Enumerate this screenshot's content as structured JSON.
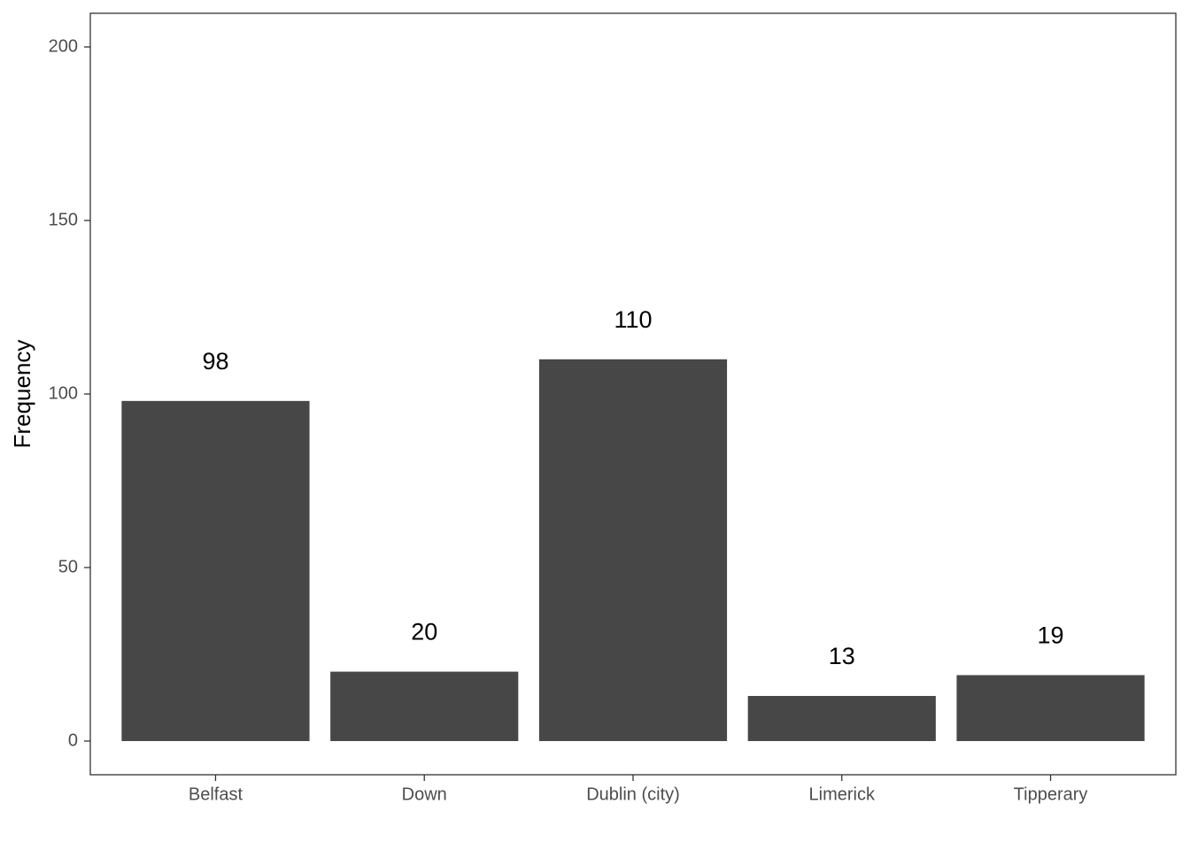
{
  "chart_data": {
    "type": "bar",
    "y_label": "Frequency",
    "categories": [
      "Belfast",
      "Down",
      "Dublin (city)",
      "Limerick",
      "Tipperary"
    ],
    "values": [
      98,
      20,
      110,
      13,
      19
    ],
    "color": "#474747",
    "ylim": [
      -9.7,
      209.7
    ],
    "yticks": [
      0,
      50,
      100,
      150,
      200
    ],
    "grid": false,
    "data_labels": true
  }
}
